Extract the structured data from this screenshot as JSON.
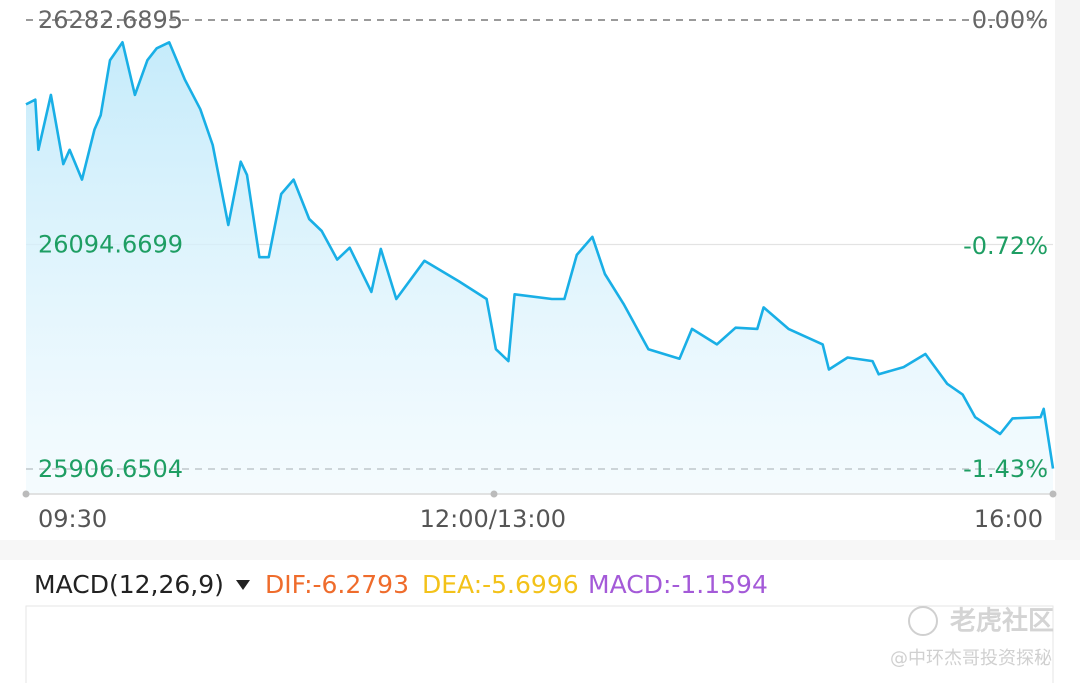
{
  "chart_data": {
    "type": "line",
    "color": "#19afe6",
    "x": [
      0,
      3,
      4,
      8,
      12,
      14,
      18,
      22,
      24,
      27,
      31,
      35,
      39,
      42,
      46,
      51,
      56,
      60,
      65,
      69,
      71,
      75,
      78,
      82,
      86,
      91,
      95,
      100,
      104,
      111,
      114,
      119,
      128,
      139,
      148,
      151,
      155,
      157,
      169,
      173,
      177,
      182,
      186,
      192,
      200,
      210,
      214,
      222,
      228,
      235,
      237,
      245,
      256,
      258,
      264,
      272,
      274,
      282,
      289,
      296,
      301,
      305,
      313,
      317,
      326,
      327,
      330
    ],
    "values": [
      26212,
      26216,
      26174,
      26220,
      26162,
      26174,
      26149,
      26191,
      26203,
      26249,
      26264,
      26220,
      26249,
      26259,
      26264,
      26233,
      26208,
      26178,
      26111,
      26164,
      26153,
      26084,
      26084,
      26137,
      26149,
      26116,
      26106,
      26082,
      26092,
      26055,
      26091,
      26049,
      26081,
      26064,
      26049,
      26007,
      25997,
      26053,
      26049,
      26049,
      26086,
      26101,
      26070,
      26045,
      26007,
      25999,
      26024,
      26011,
      26025,
      26024,
      26042,
      26024,
      26011,
      25990,
      26000,
      25997,
      25986,
      25992,
      26003,
      25978,
      25969,
      25950,
      25936,
      25949,
      25950,
      25957,
      25907
    ],
    "xlim": [
      0,
      330
    ],
    "xticks": [
      {
        "value": 0,
        "label": "09:30"
      },
      {
        "value": 150,
        "label": "12:00/13:00"
      },
      {
        "value": 330,
        "label": "16:00"
      }
    ],
    "ylim": [
      25906.6504,
      26282.6895
    ],
    "yticks": [
      26282.6895,
      26094.6699,
      25906.6504
    ],
    "y2lim": [
      -1.43,
      0
    ],
    "y2ticks": [
      {
        "value": 0,
        "label": "0.00%"
      },
      {
        "value": -0.72,
        "label": "-0.72%"
      },
      {
        "value": -1.43,
        "label": "-1.43%"
      }
    ]
  },
  "macd": {
    "title": "MACD(12,26,9)",
    "dif": "DIF:-6.2793",
    "dea": "DEA:-5.6996",
    "macd": "MACD:-1.1594"
  },
  "watermark": [
    "老虎社区",
    "@中环杰哥投资探秘"
  ]
}
